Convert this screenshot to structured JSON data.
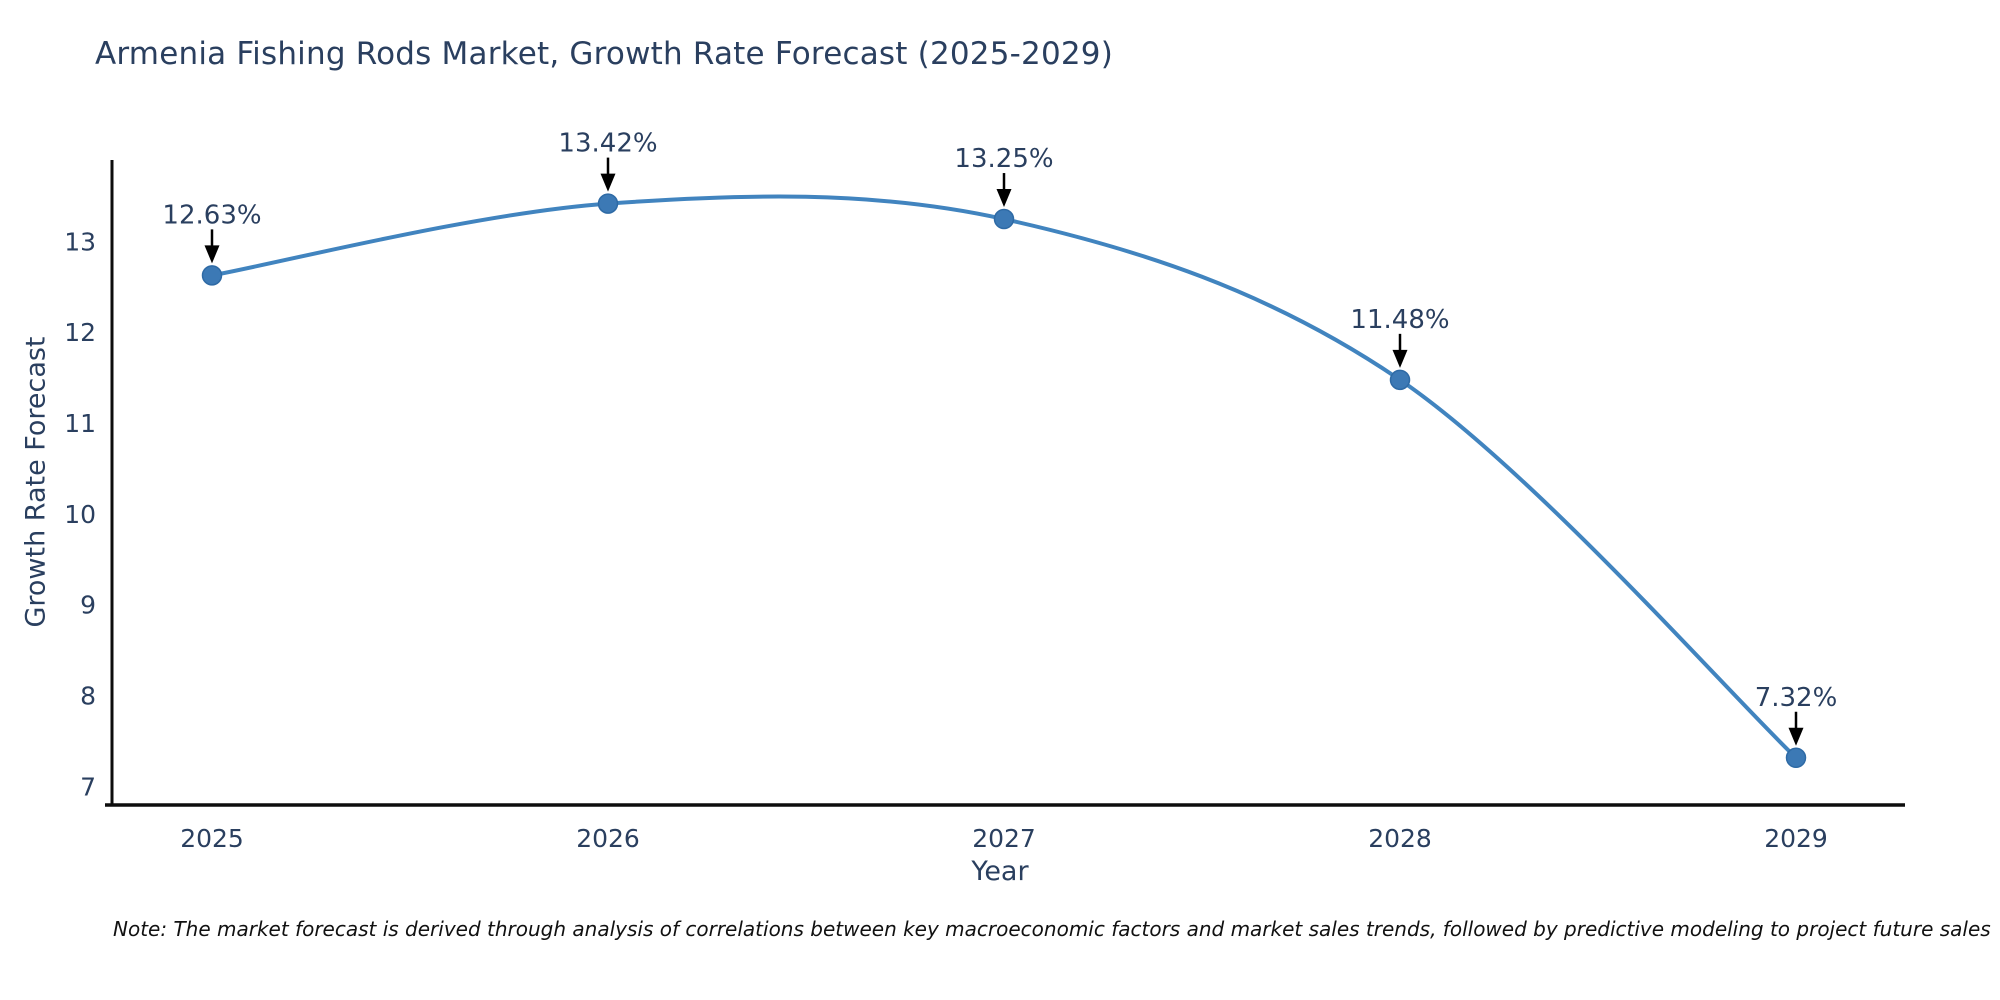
{
  "header": {
    "title": "Armenia Fishing Rods Market, Growth Rate Forecast (2025-2029)"
  },
  "chart_data": {
    "type": "line",
    "title": "Armenia Fishing Rods Market, Growth Rate Forecast (2025-2029)",
    "categories": [
      "2025",
      "2026",
      "2027",
      "2028",
      "2029"
    ],
    "values": [
      12.63,
      13.42,
      13.25,
      11.48,
      7.32
    ],
    "point_labels": [
      "12.63%",
      "13.42%",
      "13.25%",
      "11.48%",
      "7.32%"
    ],
    "xlabel": "Year",
    "ylabel": "Growth Rate Forecast",
    "y_ticks": [
      7,
      8,
      9,
      10,
      11,
      12,
      13
    ],
    "ylim": [
      6.8,
      13.9
    ],
    "line_shape": "spline",
    "grid": false,
    "legend": "none",
    "colors": {
      "line": "#4184bf",
      "marker": "#3c79b5",
      "marker_edge": "#2e6aa5",
      "axis": "#0d0d0d",
      "text": "#2a3f5f",
      "annotation_text": "#2a3f5f",
      "annotation_arrow": "#000000"
    }
  },
  "footer": {
    "note": "Note: The market forecast is derived through analysis of correlations between key macroeconomic factors and market sales trends, followed by predictive modeling to project future sales"
  }
}
